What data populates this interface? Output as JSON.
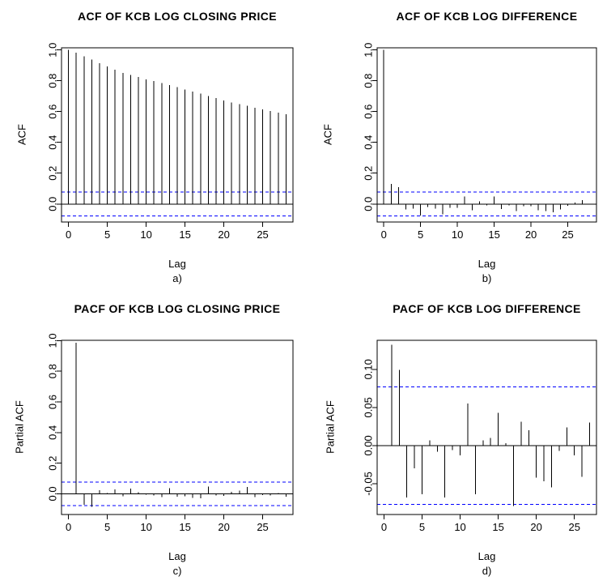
{
  "figure": {
    "background": "#FFFFFF",
    "text_color": "#000000"
  },
  "chart_data": [
    {
      "id": "a",
      "type": "bar",
      "chart_kind": "autocorrelation-needle-plot",
      "title": "ACF OF KCB LOG CLOSING PRICE",
      "xlabel": "Lag",
      "ylabel": "ACF",
      "caption": "a)",
      "start_lag": 0,
      "x_ticks": [
        0,
        5,
        10,
        15,
        20,
        25
      ],
      "y_ticks": [
        0.0,
        0.2,
        0.4,
        0.6,
        0.8,
        1.0
      ],
      "y_tick_labels": [
        "0.0",
        "0.2",
        "0.4",
        "0.6",
        "0.8",
        "1.0"
      ],
      "xlim": [
        -0.9,
        28.9
      ],
      "ylim": [
        -0.117,
        1.014
      ],
      "conf_level": 0.077,
      "grid": false,
      "bar_color": "#000000",
      "conf_color": "#0000FF",
      "values": [
        1.0,
        0.982,
        0.96,
        0.937,
        0.915,
        0.893,
        0.873,
        0.852,
        0.838,
        0.825,
        0.81,
        0.798,
        0.785,
        0.772,
        0.758,
        0.744,
        0.73,
        0.716,
        0.701,
        0.687,
        0.673,
        0.66,
        0.648,
        0.637,
        0.625,
        0.614,
        0.604,
        0.593,
        0.583
      ]
    },
    {
      "id": "b",
      "type": "bar",
      "chart_kind": "autocorrelation-needle-plot",
      "title": "ACF OF KCB LOG DIFFERENCE",
      "xlabel": "Lag",
      "ylabel": "ACF",
      "caption": "b)",
      "start_lag": 0,
      "x_ticks": [
        0,
        5,
        10,
        15,
        20,
        25
      ],
      "y_ticks": [
        0.0,
        0.2,
        0.4,
        0.6,
        0.8,
        1.0
      ],
      "y_tick_labels": [
        "0.0",
        "0.2",
        "0.4",
        "0.6",
        "0.8",
        "1.0"
      ],
      "xlim": [
        -0.9,
        28.9
      ],
      "ylim": [
        -0.117,
        1.014
      ],
      "conf_level": 0.077,
      "grid": false,
      "bar_color": "#000000",
      "conf_color": "#0000FF",
      "values": [
        1.0,
        0.13,
        0.11,
        -0.035,
        -0.03,
        -0.075,
        -0.02,
        -0.03,
        -0.068,
        -0.025,
        -0.025,
        0.048,
        -0.04,
        0.018,
        -0.01,
        0.05,
        -0.032,
        -0.01,
        -0.045,
        -0.015,
        -0.015,
        -0.04,
        -0.045,
        -0.055,
        -0.035,
        -0.012,
        0.01,
        0.025,
        -0.005
      ]
    },
    {
      "id": "c",
      "type": "bar",
      "chart_kind": "autocorrelation-needle-plot",
      "title": "PACF OF KCB LOG CLOSING PRICE",
      "xlabel": "Lag",
      "ylabel": "Partial ACF",
      "caption": "c)",
      "start_lag": 1,
      "x_ticks": [
        0,
        5,
        10,
        15,
        20,
        25
      ],
      "y_ticks": [
        0.0,
        0.2,
        0.4,
        0.6,
        0.8,
        1.0
      ],
      "y_tick_labels": [
        "0.0",
        "0.2",
        "0.4",
        "0.6",
        "0.8",
        "1.0"
      ],
      "xlim": [
        -0.9,
        28.9
      ],
      "ylim": [
        -0.135,
        1.002
      ],
      "conf_level": 0.077,
      "grid": false,
      "bar_color": "#000000",
      "conf_color": "#0000FF",
      "values": [
        0.985,
        -0.071,
        -0.084,
        0.024,
        0.004,
        0.028,
        -0.015,
        0.034,
        0.01,
        -0.006,
        -0.01,
        -0.022,
        0.037,
        -0.019,
        -0.015,
        -0.026,
        -0.03,
        0.047,
        -0.012,
        -0.014,
        0.012,
        0.02,
        0.046,
        -0.02,
        -0.008,
        -0.012,
        0.006,
        -0.018
      ]
    },
    {
      "id": "d",
      "type": "bar",
      "chart_kind": "autocorrelation-needle-plot",
      "title": "PACF OF KCB LOG DIFFERENCE",
      "xlabel": "Lag",
      "ylabel": "Partial ACF",
      "caption": "d)",
      "start_lag": 1,
      "x_ticks": [
        0,
        5,
        10,
        15,
        20,
        25
      ],
      "y_ticks": [
        -0.05,
        0.0,
        0.05,
        0.1
      ],
      "y_tick_labels": [
        "-0.05",
        "0.00",
        "0.05",
        "0.10"
      ],
      "xlim": [
        -0.9,
        27.9
      ],
      "ylim": [
        -0.0904,
        0.138
      ],
      "conf_level": 0.077,
      "grid": false,
      "bar_color": "#000000",
      "conf_color": "#0000FF",
      "values": [
        0.132,
        0.099,
        -0.068,
        -0.03,
        -0.064,
        0.007,
        -0.008,
        -0.068,
        -0.006,
        -0.013,
        0.055,
        -0.064,
        0.007,
        0.01,
        0.043,
        0.003,
        -0.079,
        0.031,
        0.02,
        -0.042,
        -0.047,
        -0.055,
        -0.007,
        0.024,
        -0.013,
        -0.041,
        0.03
      ]
    }
  ]
}
